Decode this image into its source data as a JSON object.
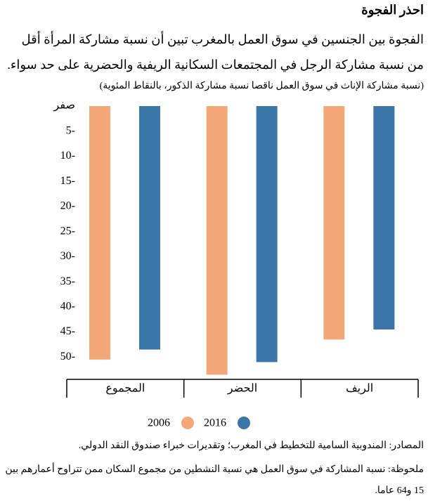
{
  "chart_data": {
    "type": "bar",
    "title": "احذر الفجوة",
    "subtitle": "الفجوة بين الجنسين في سوق العمل بالمغرب تبين أن نسبة مشاركة المرأة أقل من نسبة مشاركة الرجل في المجتمعات السكانية الريفية والحضرية على حد سواء.",
    "y_label": "(نسبة مشاركة الإناث في سوق العمل ناقصا نسبة مشاركة الذكور، بالنقاط المئوية)",
    "categories": [
      "المجموع",
      "الحضر",
      "الريف"
    ],
    "series": [
      {
        "name": "2006",
        "color": "#f4a779",
        "values": [
          -50.5,
          -53.5,
          -46.5
        ]
      },
      {
        "name": "2016",
        "color": "#3a76a8",
        "values": [
          -48.5,
          -51,
          -44.5
        ]
      }
    ],
    "ylim": [
      0,
      -55
    ],
    "yticks": [
      {
        "value": 0,
        "label": "صفر"
      },
      {
        "value": -5,
        "label": "5-"
      },
      {
        "value": -10,
        "label": "10-"
      },
      {
        "value": -15,
        "label": "15-"
      },
      {
        "value": -20,
        "label": "20-"
      },
      {
        "value": -25,
        "label": "25-"
      },
      {
        "value": -30,
        "label": "30-"
      },
      {
        "value": -35,
        "label": "35-"
      },
      {
        "value": -40,
        "label": "40-"
      },
      {
        "value": -45,
        "label": "45-"
      },
      {
        "value": -50,
        "label": "50-"
      }
    ],
    "grid": false,
    "sources": "المصادر: المندوبية السامية للتخطيط في المغرب؛ وتقديرات خبراء صندوق النقد الدولي.",
    "note": "ملحوظة: نسبة المشاركة في سوق العمل هي نسبة النشطين من مجموع السكان ممن تتراوح أعمارهم بين 15 و64 عاما."
  }
}
